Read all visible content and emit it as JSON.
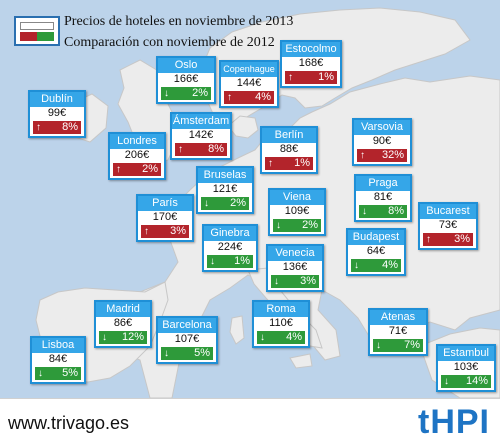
{
  "legend": {
    "line1": "Precios de hoteles en noviembre de 2013",
    "line2": "Comparación con noviembre de 2012"
  },
  "colors": {
    "sea": "#bcd3ea",
    "land": "#ececec",
    "header": "#35a6e8",
    "up": "#b3242b",
    "down": "#2e9a3a"
  },
  "cities": [
    {
      "id": "oslo",
      "name": "Oslo",
      "price": "166€",
      "direction": "down",
      "arrow": "↓",
      "change": "2%"
    },
    {
      "id": "copenhague",
      "name": "Copenhague",
      "price": "144€",
      "direction": "up",
      "arrow": "↑",
      "change": "4%"
    },
    {
      "id": "estocolmo",
      "name": "Estocolmo",
      "price": "168€",
      "direction": "up",
      "arrow": "↑",
      "change": "1%"
    },
    {
      "id": "dublin",
      "name": "Dublín",
      "price": "99€",
      "direction": "up",
      "arrow": "↑",
      "change": "8%"
    },
    {
      "id": "amsterdam",
      "name": "Ámsterdam",
      "price": "142€",
      "direction": "up",
      "arrow": "↑",
      "change": "8%"
    },
    {
      "id": "londres",
      "name": "Londres",
      "price": "206€",
      "direction": "up",
      "arrow": "↑",
      "change": "2%"
    },
    {
      "id": "berlin",
      "name": "Berlín",
      "price": "88€",
      "direction": "up",
      "arrow": "↑",
      "change": "1%"
    },
    {
      "id": "varsovia",
      "name": "Varsovia",
      "price": "90€",
      "direction": "up",
      "arrow": "↑",
      "change": "32%"
    },
    {
      "id": "bruselas",
      "name": "Bruselas",
      "price": "121€",
      "direction": "down",
      "arrow": "↓",
      "change": "2%"
    },
    {
      "id": "paris",
      "name": "París",
      "price": "170€",
      "direction": "up",
      "arrow": "↑",
      "change": "3%"
    },
    {
      "id": "viena",
      "name": "Viena",
      "price": "109€",
      "direction": "down",
      "arrow": "↓",
      "change": "2%"
    },
    {
      "id": "praga",
      "name": "Praga",
      "price": "81€",
      "direction": "down",
      "arrow": "↓",
      "change": "8%"
    },
    {
      "id": "bucarest",
      "name": "Bucarest",
      "price": "73€",
      "direction": "up",
      "arrow": "↑",
      "change": "3%"
    },
    {
      "id": "ginebra",
      "name": "Ginebra",
      "price": "224€",
      "direction": "down",
      "arrow": "↓",
      "change": "1%"
    },
    {
      "id": "budapest",
      "name": "Budapest",
      "price": "64€",
      "direction": "down",
      "arrow": "↓",
      "change": "4%"
    },
    {
      "id": "venecia",
      "name": "Venecia",
      "price": "136€",
      "direction": "down",
      "arrow": "↓",
      "change": "3%"
    },
    {
      "id": "madrid",
      "name": "Madrid",
      "price": "86€",
      "direction": "down",
      "arrow": "↓",
      "change": "12%"
    },
    {
      "id": "barcelona",
      "name": "Barcelona",
      "price": "107€",
      "direction": "down",
      "arrow": "↓",
      "change": "5%"
    },
    {
      "id": "roma",
      "name": "Roma",
      "price": "110€",
      "direction": "down",
      "arrow": "↓",
      "change": "4%"
    },
    {
      "id": "atenas",
      "name": "Atenas",
      "price": "71€",
      "direction": "down",
      "arrow": "↓",
      "change": "7%"
    },
    {
      "id": "lisboa",
      "name": "Lisboa",
      "price": "84€",
      "direction": "down",
      "arrow": "↓",
      "change": "5%"
    },
    {
      "id": "estambul",
      "name": "Estambul",
      "price": "103€",
      "direction": "down",
      "arrow": "↓",
      "change": "14%"
    }
  ],
  "footer": {
    "site": "www.trivago.es",
    "brand": "tHPI"
  }
}
